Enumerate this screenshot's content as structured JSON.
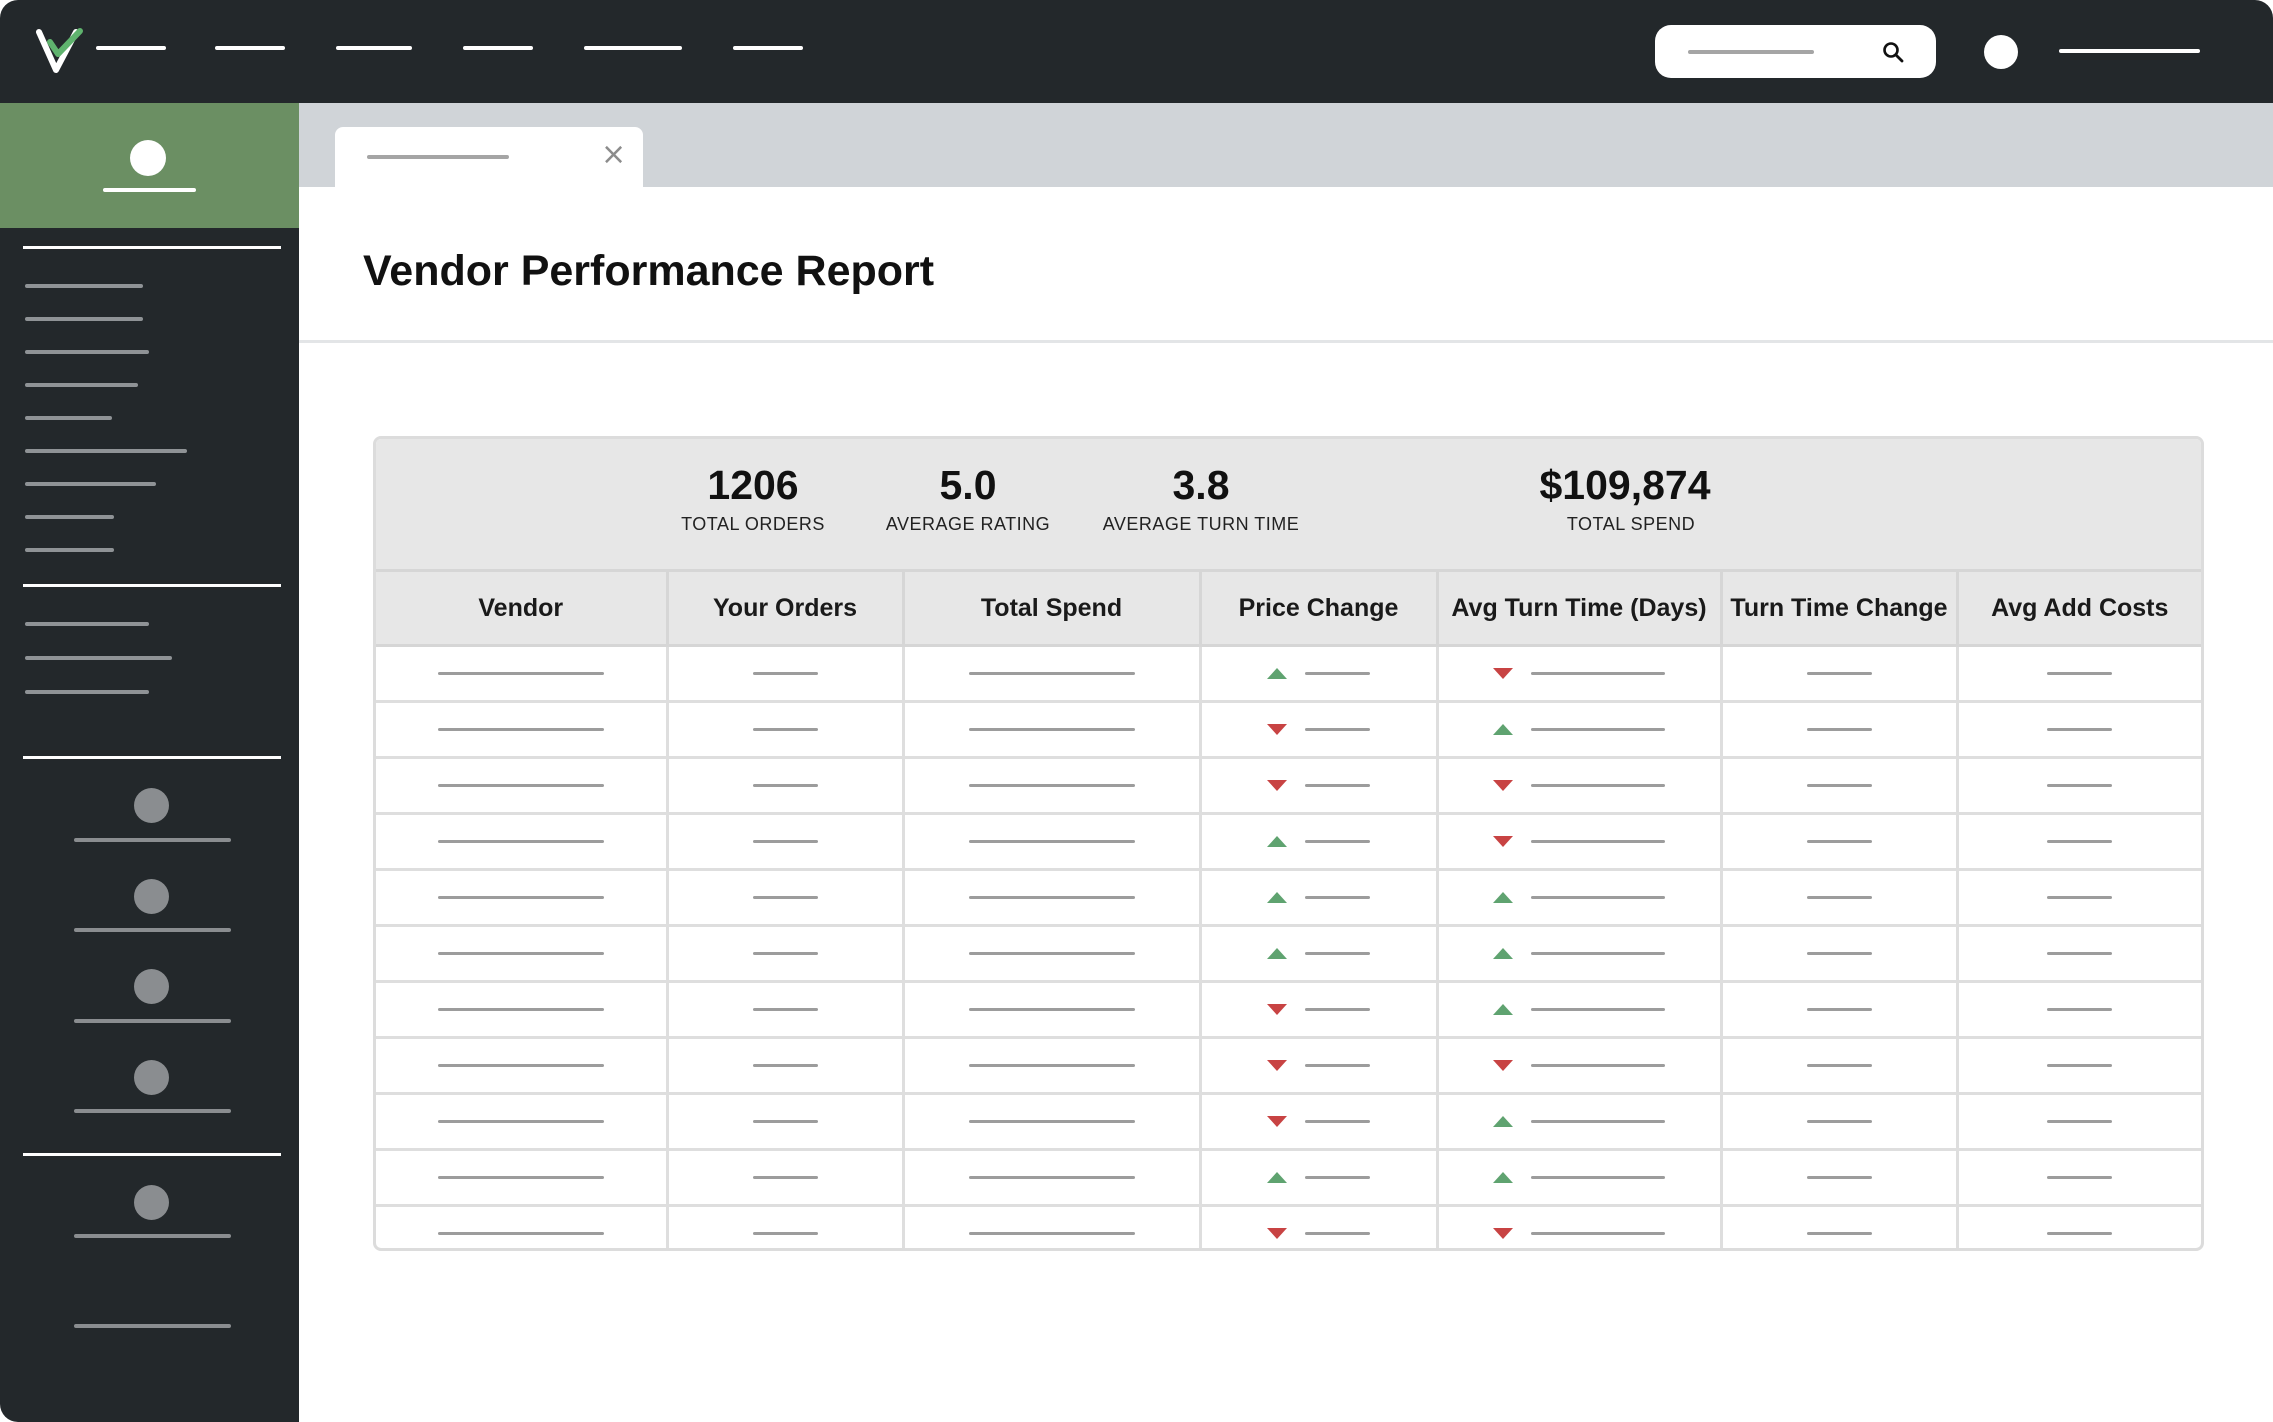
{
  "app": {
    "brand_colors": {
      "topbar": "#23282b",
      "sidebar_profile": "#6b8f63",
      "up_arrow": "#5fa370",
      "down_arrow": "#c84343"
    }
  },
  "header": {
    "logo_icon": "v-check-logo-icon",
    "search_icon": "search-icon"
  },
  "tab": {
    "close_label": "×"
  },
  "page": {
    "title": "Vendor Performance Report"
  },
  "stats": [
    {
      "value": "1206",
      "label": "TOTAL ORDERS"
    },
    {
      "value": "5.0",
      "label": "AVERAGE RATING"
    },
    {
      "value": "3.8",
      "label": "AVERAGE TURN TIME"
    },
    {
      "value": "$109,874",
      "label": "TOTAL SPEND"
    }
  ],
  "table": {
    "columns": [
      "Vendor",
      "Your Orders",
      "Total Spend",
      "Price Change",
      "Avg Turn Time (Days)",
      "Turn Time Change",
      "Avg Add Costs"
    ],
    "rows": [
      {
        "price_change": "up",
        "turn_time": "down"
      },
      {
        "price_change": "down",
        "turn_time": "up"
      },
      {
        "price_change": "down",
        "turn_time": "down"
      },
      {
        "price_change": "up",
        "turn_time": "down"
      },
      {
        "price_change": "up",
        "turn_time": "up"
      },
      {
        "price_change": "up",
        "turn_time": "up"
      },
      {
        "price_change": "down",
        "turn_time": "up"
      },
      {
        "price_change": "down",
        "turn_time": "down"
      },
      {
        "price_change": "down",
        "turn_time": "up"
      },
      {
        "price_change": "up",
        "turn_time": "up"
      },
      {
        "price_change": "down",
        "turn_time": "down"
      }
    ]
  }
}
